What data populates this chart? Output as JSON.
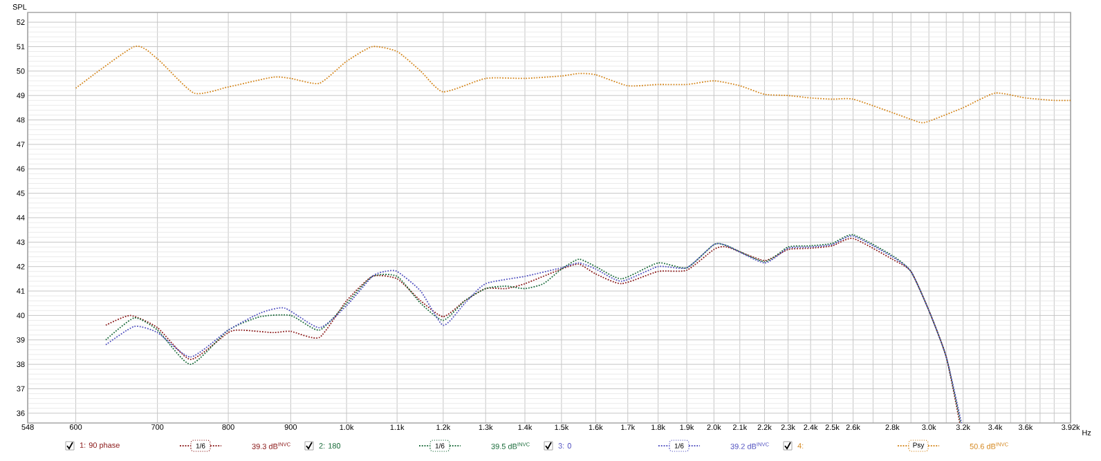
{
  "chart_data": {
    "type": "line",
    "ylabel": "SPL",
    "log": "x",
    "grid": true,
    "legend": "bottom",
    "line_style": "dotted",
    "xlim": [
      548,
      3920
    ],
    "ylim": [
      35.6,
      52.4
    ],
    "xticks": [
      548,
      600,
      700,
      800,
      900,
      {
        "value": 1000,
        "label": "1.0k"
      },
      {
        "value": 1100,
        "label": "1.1k"
      },
      {
        "value": 1200,
        "label": "1.2k"
      },
      {
        "value": 1300,
        "label": "1.3k"
      },
      {
        "value": 1400,
        "label": "1.4k"
      },
      {
        "value": 1500,
        "label": "1.5k"
      },
      {
        "value": 1600,
        "label": "1.6k"
      },
      {
        "value": 1700,
        "label": "1.7k"
      },
      {
        "value": 1800,
        "label": "1.8k"
      },
      {
        "value": 1900,
        "label": "1.9k"
      },
      {
        "value": 2000,
        "label": "2.0k"
      },
      {
        "value": 2100,
        "label": "2.1k"
      },
      {
        "value": 2200,
        "label": "2.2k"
      },
      {
        "value": 2300,
        "label": "2.3k"
      },
      {
        "value": 2400,
        "label": "2.4k"
      },
      {
        "value": 2500,
        "label": "2.5k"
      },
      {
        "value": 2600,
        "label": "2.6k"
      },
      {
        "value": 2700,
        "label": null
      },
      {
        "value": 2800,
        "label": "2.8k"
      },
      {
        "value": 2900,
        "label": null
      },
      {
        "value": 3000,
        "label": "3.0k"
      },
      {
        "value": 3100,
        "label": null
      },
      {
        "value": 3200,
        "label": "3.2k"
      },
      {
        "value": 3300,
        "label": null
      },
      {
        "value": 3400,
        "label": "3.4k"
      },
      {
        "value": 3500,
        "label": null
      },
      {
        "value": 3600,
        "label": "3.6k"
      },
      {
        "value": 3700,
        "label": null
      },
      {
        "value": 3800,
        "label": null
      },
      {
        "value": 3920,
        "label": "3.92k"
      }
    ],
    "xlabel": "Hz",
    "yticks": [
      36,
      37,
      38,
      39,
      40,
      41,
      42,
      43,
      44,
      45,
      46,
      47,
      48,
      49,
      50,
      51,
      52
    ],
    "annotations": [
      "1/6",
      "39.3 dB$^{INVC}$",
      "1/6",
      "39.5 dB$^{INVC}$",
      "1/6",
      "39.2 dB$^{INVC}$",
      "Psy",
      "50.6 dB$^{INVC}$"
    ],
    "series": [
      {
        "name": "1: 90 phase",
        "color": "#8b1a1a",
        "x": [
          635,
          665,
          700,
          745,
          800,
          820,
          870,
          900,
          950,
          1000,
          1050,
          1100,
          1150,
          1200,
          1250,
          1300,
          1350,
          1400,
          1500,
          1550,
          1600,
          1680,
          1800,
          1900,
          2000,
          2050,
          2200,
          2300,
          2400,
          2500,
          2600,
          2800,
          2900,
          3000,
          3100,
          3180
        ],
        "values": [
          39.6,
          40.0,
          39.5,
          38.2,
          39.3,
          39.4,
          39.3,
          39.35,
          39.1,
          40.6,
          41.6,
          41.5,
          40.6,
          39.95,
          40.6,
          41.1,
          41.1,
          41.3,
          41.9,
          42.1,
          41.7,
          41.3,
          41.8,
          41.85,
          42.7,
          42.8,
          42.25,
          42.7,
          42.75,
          42.85,
          43.15,
          42.3,
          41.8,
          40.2,
          38.3,
          35.6
        ]
      },
      {
        "name": "2: 180",
        "color": "#1a6b3a",
        "x": [
          635,
          670,
          700,
          745,
          800,
          850,
          900,
          950,
          1000,
          1050,
          1100,
          1150,
          1200,
          1250,
          1300,
          1350,
          1400,
          1450,
          1500,
          1550,
          1600,
          1680,
          1800,
          1900,
          2000,
          2050,
          2200,
          2300,
          2400,
          2500,
          2600,
          2800,
          2900,
          3000,
          3100,
          3185
        ],
        "values": [
          39.0,
          39.9,
          39.4,
          38.0,
          39.4,
          39.95,
          40.0,
          39.4,
          40.5,
          41.6,
          41.6,
          40.5,
          39.8,
          40.6,
          41.1,
          41.2,
          41.1,
          41.3,
          41.9,
          42.3,
          42.0,
          41.5,
          42.15,
          41.95,
          42.9,
          42.85,
          42.2,
          42.8,
          42.85,
          42.95,
          43.3,
          42.45,
          41.8,
          40.2,
          38.3,
          35.6
        ]
      },
      {
        "name": "3: 0",
        "color": "#5050c0",
        "x": [
          635,
          670,
          700,
          745,
          800,
          850,
          890,
          950,
          1000,
          1050,
          1075,
          1100,
          1150,
          1200,
          1250,
          1300,
          1400,
          1500,
          1550,
          1600,
          1680,
          1800,
          1900,
          2000,
          2050,
          2200,
          2300,
          2400,
          2500,
          2600,
          2800,
          2900,
          3000,
          3100,
          3190
        ],
        "values": [
          38.8,
          39.55,
          39.3,
          38.3,
          39.4,
          40.1,
          40.3,
          39.5,
          40.4,
          41.6,
          41.8,
          41.8,
          41.0,
          39.6,
          40.5,
          41.3,
          41.6,
          41.95,
          42.15,
          41.9,
          41.4,
          42.0,
          41.95,
          42.9,
          42.85,
          42.15,
          42.75,
          42.8,
          42.9,
          43.25,
          42.4,
          41.8,
          40.2,
          38.3,
          35.6
        ]
      },
      {
        "name": "4:",
        "color": "#d4861c",
        "x": [
          600,
          670,
          700,
          750,
          800,
          870,
          900,
          950,
          1000,
          1050,
          1100,
          1150,
          1200,
          1300,
          1400,
          1500,
          1550,
          1600,
          1700,
          1800,
          1900,
          2000,
          2100,
          2200,
          2300,
          2400,
          2500,
          2600,
          2800,
          2950,
          3000,
          3200,
          3400,
          3600,
          3800,
          3920
        ],
        "values": [
          49.3,
          51.0,
          50.5,
          49.1,
          49.35,
          49.75,
          49.7,
          49.5,
          50.4,
          51.0,
          50.8,
          50.0,
          49.15,
          49.7,
          49.7,
          49.8,
          49.9,
          49.85,
          49.4,
          49.45,
          49.45,
          49.6,
          49.4,
          49.05,
          49.0,
          48.9,
          48.85,
          48.85,
          48.3,
          47.9,
          47.95,
          48.5,
          49.1,
          48.9,
          48.8,
          48.8
        ]
      }
    ]
  }
}
